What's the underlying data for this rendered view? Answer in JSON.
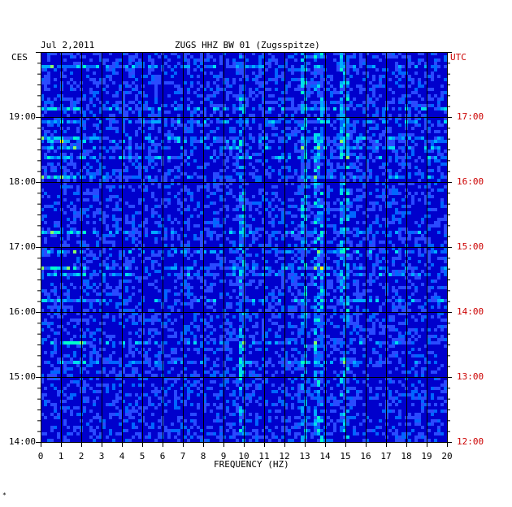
{
  "header": {
    "date": "Jul 2,2011",
    "station": "ZUGS HHZ BW 01 (Zugsspitze)",
    "left_tz": "CES",
    "right_tz": "UTC"
  },
  "footer_mark": "*",
  "chart_data": {
    "type": "heatmap",
    "title": "ZUGS HHZ BW 01 (Zugsspitze)",
    "xlabel": "FREQUENCY (HZ)",
    "x_ticks": [
      "0",
      "1",
      "2",
      "3",
      "4",
      "5",
      "6",
      "7",
      "8",
      "9",
      "10",
      "11",
      "12",
      "13",
      "14",
      "15",
      "16",
      "17",
      "18",
      "19",
      "20"
    ],
    "xlim": [
      0,
      20
    ],
    "y_ticks_left": [
      "19:00",
      "18:00",
      "17:00",
      "16:00",
      "15:00",
      "14:00"
    ],
    "y_ticks_right": [
      "17:00",
      "16:00",
      "15:00",
      "14:00",
      "13:00",
      "12:00"
    ],
    "ylim_local": [
      "14:00",
      "20:00"
    ],
    "colors": {
      "background": "#0000cc",
      "low": "#1a1aff",
      "mid": "#00aaff",
      "high": "#00ffcc",
      "peak": "#ffff00",
      "max": "#ff3300",
      "grid": "#000000",
      "utc_text": "#cc0000"
    },
    "notable_bands_hz": [
      9.8,
      12.9,
      13.6,
      14.9
    ],
    "grid": true
  }
}
